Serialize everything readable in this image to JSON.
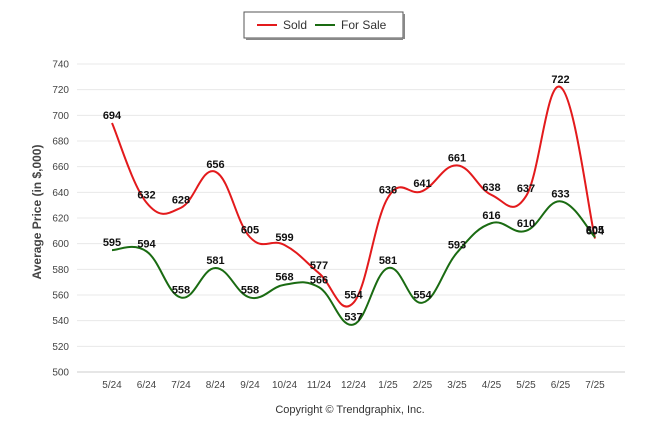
{
  "chart_data": {
    "type": "line",
    "title": "",
    "xlabel": "",
    "ylabel": "Average Price (in $,000)",
    "ylim": [
      500,
      740
    ],
    "yticks": [
      500,
      520,
      540,
      560,
      580,
      600,
      620,
      640,
      660,
      680,
      700,
      720,
      740
    ],
    "categories": [
      "5/24",
      "6/24",
      "7/24",
      "8/24",
      "9/24",
      "10/24",
      "11/24",
      "12/24",
      "1/25",
      "2/25",
      "3/25",
      "4/25",
      "5/25",
      "6/25",
      "7/25"
    ],
    "legend_position": "top-center",
    "grid": true,
    "series": [
      {
        "name": "Sold",
        "color": "#e31a1c",
        "values": [
          694,
          632,
          628,
          656,
          605,
          599,
          577,
          554,
          636,
          641,
          661,
          638,
          637,
          722,
          604
        ]
      },
      {
        "name": "For Sale",
        "color": "#1a6b12",
        "values": [
          595,
          594,
          558,
          581,
          558,
          568,
          566,
          537,
          581,
          554,
          593,
          616,
          610,
          633,
          605
        ]
      }
    ]
  },
  "footer": {
    "copyright": "Copyright © Trendgraphix, Inc."
  }
}
